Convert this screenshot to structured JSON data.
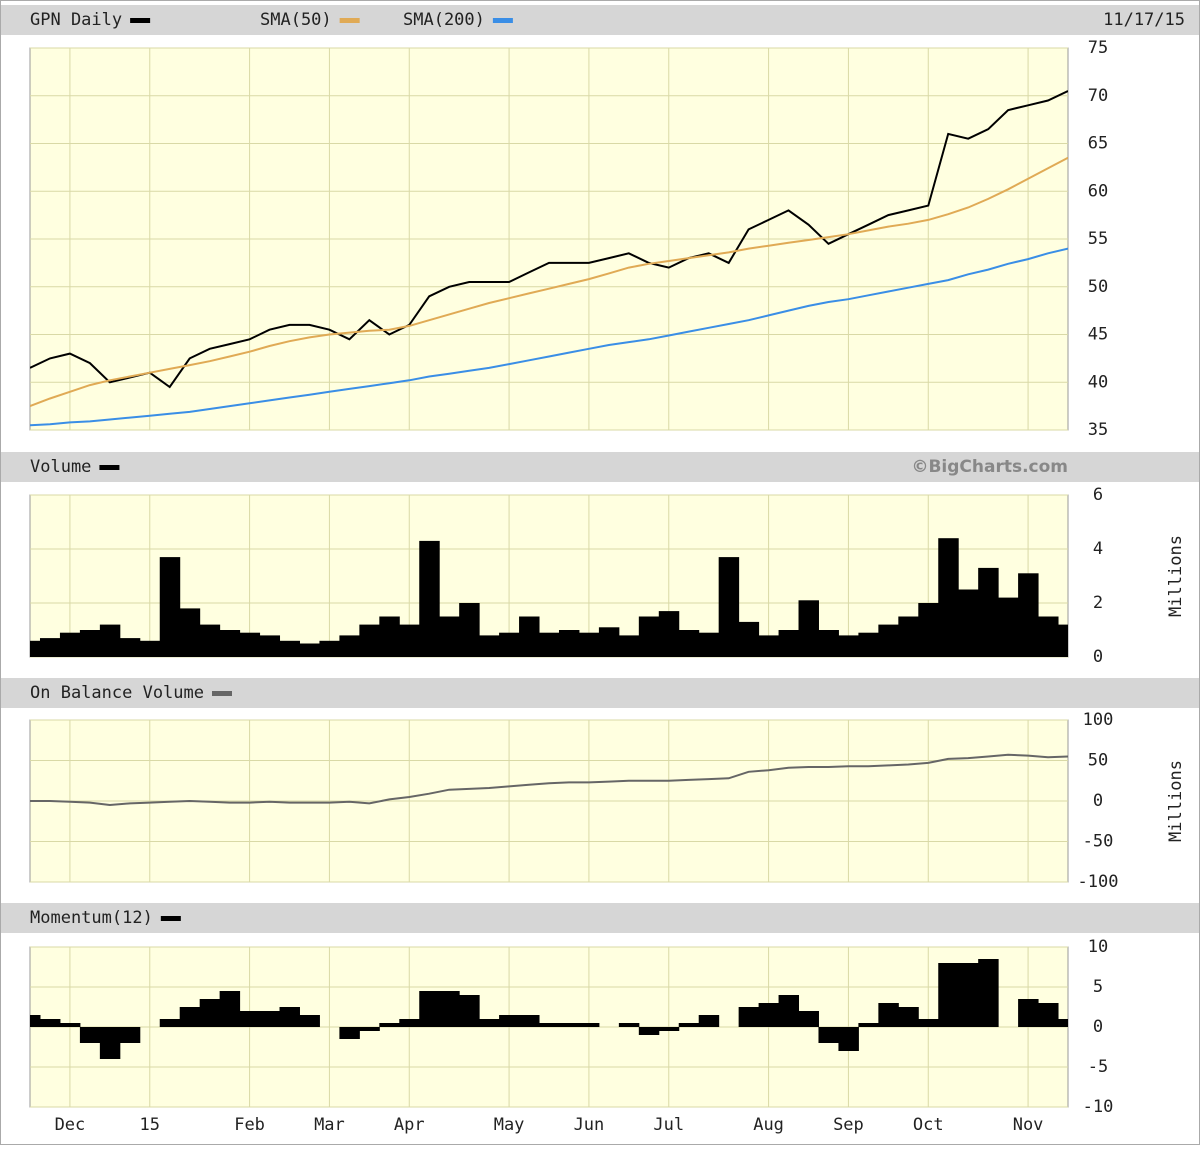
{
  "chart_data": [
    {
      "type": "line",
      "date": "11/17/15",
      "ylim": [
        35,
        75
      ],
      "yticks": [
        35,
        40,
        45,
        50,
        55,
        60,
        65,
        70,
        75
      ],
      "grid": true,
      "series": [
        {
          "name": "GPN Daily",
          "color": "#000000",
          "values": [
            41.5,
            42.5,
            43,
            42,
            40,
            40.5,
            41,
            39.5,
            42.5,
            43.5,
            44,
            44.5,
            45.5,
            46,
            46,
            45.5,
            44.5,
            46.5,
            45,
            46,
            49,
            50,
            50.5,
            50.5,
            50.5,
            51.5,
            52.5,
            52.5,
            52.5,
            53,
            53.5,
            52.5,
            52,
            53,
            53.5,
            52.5,
            56,
            57,
            58,
            56.5,
            54.5,
            55.5,
            56.5,
            57.5,
            58,
            58.5,
            66,
            65.5,
            66.5,
            68.5,
            69,
            69.5,
            70.5
          ]
        },
        {
          "name": "SMA(50)",
          "color": "#e0aa55",
          "values": [
            37.5,
            38.3,
            39,
            39.7,
            40.2,
            40.6,
            41,
            41.4,
            41.8,
            42.2,
            42.7,
            43.2,
            43.8,
            44.3,
            44.7,
            45,
            45.2,
            45.4,
            45.5,
            45.9,
            46.5,
            47.1,
            47.7,
            48.3,
            48.8,
            49.3,
            49.8,
            50.3,
            50.8,
            51.4,
            52,
            52.4,
            52.7,
            53,
            53.3,
            53.6,
            54,
            54.3,
            54.6,
            54.9,
            55.2,
            55.5,
            55.9,
            56.3,
            56.6,
            57,
            57.6,
            58.3,
            59.2,
            60.2,
            61.3,
            62.4,
            63.5
          ]
        },
        {
          "name": "SMA(200)",
          "color": "#3a8ee6",
          "values": [
            35.5,
            35.6,
            35.8,
            35.9,
            36.1,
            36.3,
            36.5,
            36.7,
            36.9,
            37.2,
            37.5,
            37.8,
            38.1,
            38.4,
            38.7,
            39,
            39.3,
            39.6,
            39.9,
            40.2,
            40.6,
            40.9,
            41.2,
            41.5,
            41.9,
            42.3,
            42.7,
            43.1,
            43.5,
            43.9,
            44.2,
            44.5,
            44.9,
            45.3,
            45.7,
            46.1,
            46.5,
            47,
            47.5,
            48,
            48.4,
            48.7,
            49.1,
            49.5,
            49.9,
            50.3,
            50.7,
            51.3,
            51.8,
            52.4,
            52.9,
            53.5,
            54
          ]
        }
      ]
    },
    {
      "type": "bar",
      "credit": "©BigCharts.com",
      "y_label": "Millions",
      "ylim": [
        0,
        6
      ],
      "yticks": [
        0,
        2,
        4,
        6
      ],
      "grid": true,
      "series": [
        {
          "name": "Volume",
          "color": "#000000",
          "values": [
            0.6,
            0.7,
            0.9,
            1,
            1.2,
            0.7,
            0.6,
            3.7,
            1.8,
            1.2,
            1,
            0.9,
            0.8,
            0.6,
            0.5,
            0.6,
            0.8,
            1.2,
            1.5,
            1.2,
            4.3,
            1.5,
            2,
            0.8,
            0.9,
            1.5,
            0.9,
            1,
            0.9,
            1.1,
            0.8,
            1.5,
            1.7,
            1,
            0.9,
            3.7,
            1.3,
            0.8,
            1,
            2.1,
            1,
            0.8,
            0.9,
            1.2,
            1.5,
            2,
            4.4,
            2.5,
            3.3,
            2.2,
            3.1,
            1.5,
            1.2
          ]
        }
      ]
    },
    {
      "type": "line",
      "y_label": "Millions",
      "ylim": [
        -100,
        100
      ],
      "yticks": [
        -100,
        -50,
        0,
        50,
        100
      ],
      "grid": true,
      "series": [
        {
          "name": "On Balance Volume",
          "color": "#666666",
          "values": [
            0,
            0,
            -1,
            -2,
            -5,
            -3,
            -2,
            -1,
            0,
            -1,
            -2,
            -2,
            -1,
            -2,
            -2,
            -2,
            -1,
            -3,
            2,
            5,
            9,
            14,
            15,
            16,
            18,
            20,
            22,
            23,
            23,
            24,
            25,
            25,
            25,
            26,
            27,
            28,
            36,
            38,
            41,
            42,
            42,
            43,
            43,
            44,
            45,
            47,
            52,
            53,
            55,
            57,
            56,
            54,
            55
          ]
        }
      ]
    },
    {
      "type": "bar",
      "ylim": [
        -10,
        10
      ],
      "yticks": [
        -10,
        -5,
        0,
        5,
        10
      ],
      "grid": true,
      "categories": [
        null,
        null,
        "Dec",
        null,
        null,
        null,
        "15",
        null,
        null,
        null,
        null,
        "Feb",
        null,
        null,
        null,
        "Mar",
        null,
        null,
        null,
        "Apr",
        null,
        null,
        null,
        null,
        "May",
        null,
        null,
        null,
        "Jun",
        null,
        null,
        null,
        "Jul",
        null,
        null,
        null,
        null,
        "Aug",
        null,
        null,
        null,
        "Sep",
        null,
        null,
        null,
        "Oct",
        null,
        null,
        null,
        null,
        "Nov",
        null,
        null
      ],
      "series": [
        {
          "name": "Momentum(12)",
          "color": "#000000",
          "values": [
            1.5,
            1,
            0.5,
            -2,
            -4,
            -2,
            0,
            1,
            2.5,
            3.5,
            4.5,
            2,
            2,
            2.5,
            1.5,
            0,
            -1.5,
            -0.5,
            0.5,
            1,
            4.5,
            4.5,
            4,
            1,
            1.5,
            1.5,
            0.5,
            0.5,
            0.5,
            0,
            0.5,
            -1,
            -0.5,
            0.5,
            1.5,
            0,
            2.5,
            3,
            4,
            2,
            -2,
            -3,
            0.5,
            3,
            2.5,
            1,
            8,
            8,
            8.5,
            0,
            3.5,
            3,
            1
          ]
        }
      ]
    }
  ]
}
